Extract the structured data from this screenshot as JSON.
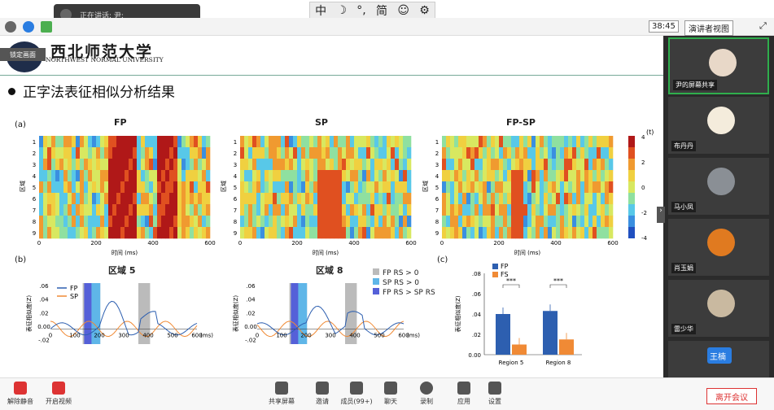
{
  "speaking": {
    "label": "正在讲话: 尹;"
  },
  "ime": {
    "items": [
      "中",
      "☽",
      "°,",
      "简",
      "☺",
      "⚙"
    ]
  },
  "topbar": {
    "timer": "38:45",
    "view_label": "演讲者视图"
  },
  "slide": {
    "logo_cn": "西北师范大学",
    "logo_en": "NORTHWEST NORMAL UNIVERSITY",
    "lock_label": "锁定画面",
    "title": "正字法表征相似分析结果",
    "panel_a_label": "(a)",
    "panel_b_label": "(b)",
    "panel_c_label": "(c)",
    "heatmaps": [
      {
        "title": "FP"
      },
      {
        "title": "SP"
      },
      {
        "title": "FP-SP"
      }
    ],
    "heatmap_ylabel": "区域",
    "heatmap_xlabel": "时间 (ms)",
    "heatmap_xticks": [
      "0",
      "200",
      "400",
      "600"
    ],
    "heatmap_yticks": [
      "1",
      "2",
      "3",
      "4",
      "5",
      "6",
      "7",
      "8",
      "9"
    ],
    "colorbar_ticks": [
      "4",
      "2",
      "0",
      "-2",
      "-4"
    ],
    "colorbar_label": "(t)",
    "line_charts": [
      {
        "title": "区域 5",
        "legend": [
          "FP",
          "SP"
        ]
      },
      {
        "title": "区域 8"
      }
    ],
    "line_ylabel": "表征相似度(Z)",
    "line_yticks": [
      ".06",
      ".04",
      ".02",
      "0.00",
      "-.02"
    ],
    "line_xticks": [
      "0",
      "100",
      "200",
      "300",
      "400",
      "500",
      "600"
    ],
    "line_xunit": "(ms)",
    "line_legend": [
      "FP RS > 0",
      "SP RS > 0",
      "FP RS > SP RS"
    ],
    "bar_legend": [
      "FP",
      "FS"
    ],
    "bar_ylabel": "表征相似度(Z)",
    "bar_yticks": [
      ".08",
      ".06",
      ".04",
      ".02",
      "0.00"
    ],
    "bar_categories": [
      "Region 5",
      "Region 8"
    ],
    "sig_label": "***"
  },
  "chart_data": [
    {
      "type": "bar",
      "categories": [
        "Region 5",
        "Region 8"
      ],
      "series": [
        {
          "name": "FP",
          "values": [
            0.04,
            0.043
          ]
        },
        {
          "name": "FS",
          "values": [
            0.01,
            0.015
          ]
        }
      ],
      "ylabel": "表征相似度(Z)",
      "ylim": [
        0,
        0.08
      ],
      "colors": [
        "#2d5fb0",
        "#f08a35"
      ]
    }
  ],
  "participants": [
    {
      "name": "尹的屏幕共享"
    },
    {
      "name": "布丹丹"
    },
    {
      "name": "马小凤"
    },
    {
      "name": "肖玉娟"
    },
    {
      "name": "雷少华"
    },
    {
      "name": "王楠"
    }
  ],
  "bottombar": {
    "items": [
      "解除静音",
      "开启视频",
      "共享屏幕",
      "邀请",
      "成员(99+)",
      "聊天",
      "录制",
      "应用",
      "设置"
    ],
    "leave": "离开会议"
  }
}
